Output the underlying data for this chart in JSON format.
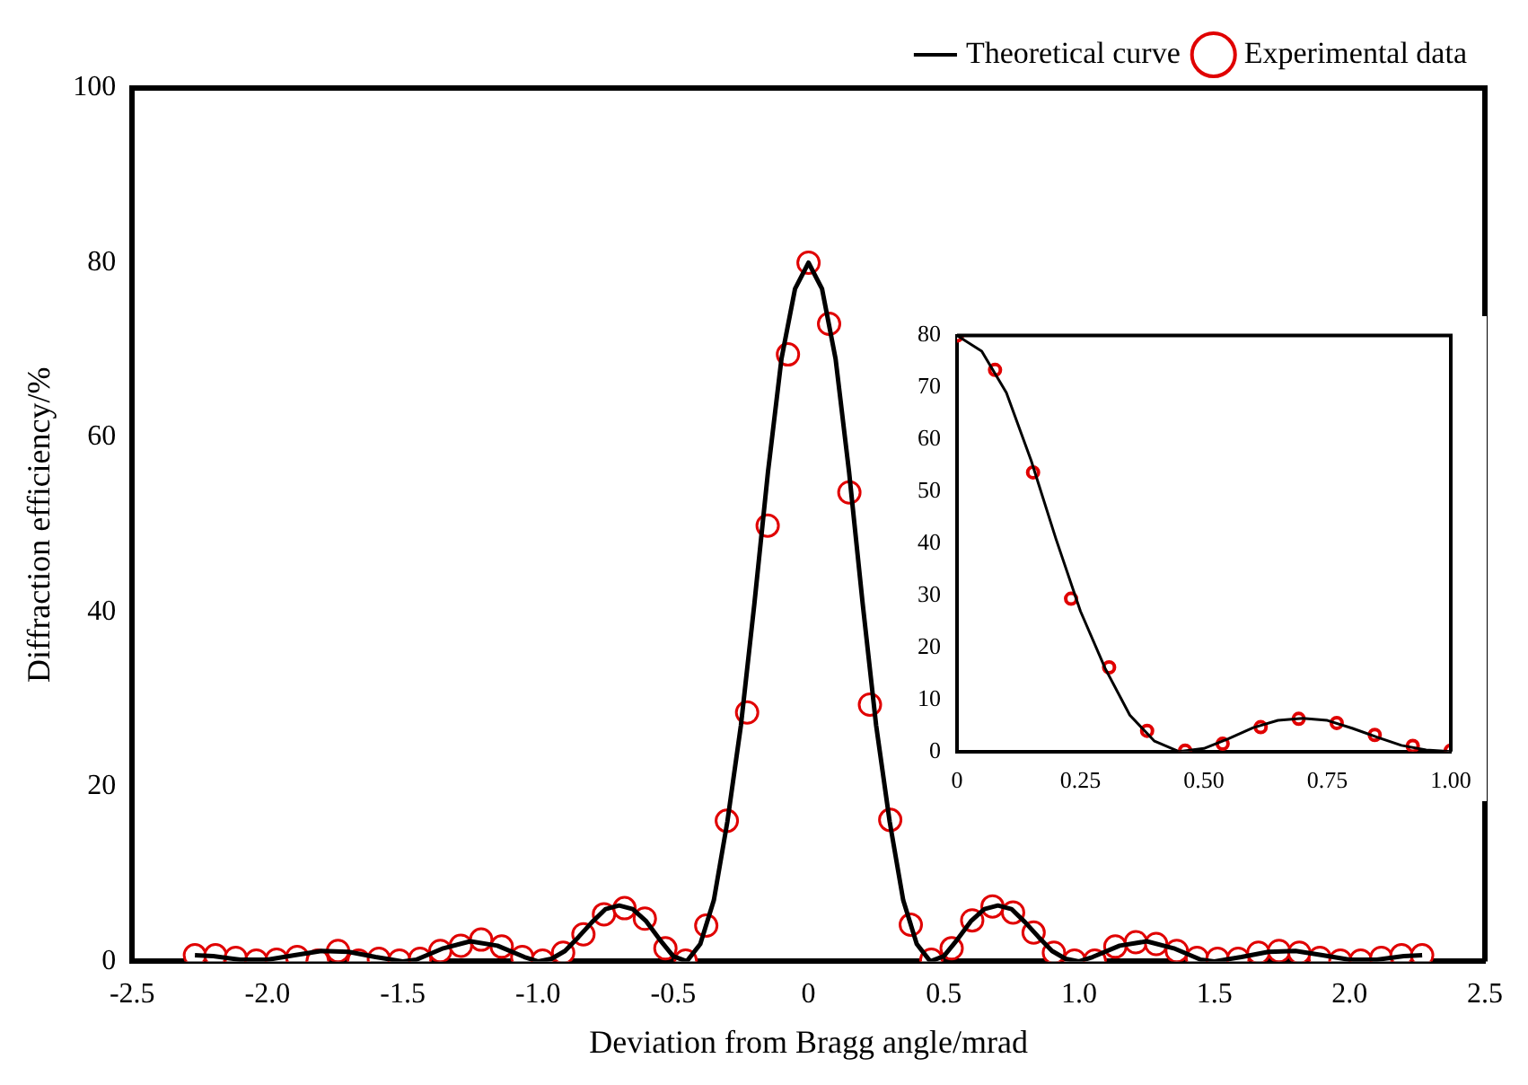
{
  "chart_data": [
    {
      "type": "scatter",
      "xlabel": "Deviation from Bragg angle/mrad",
      "ylabel": "Diffraction efficiency/%",
      "legend": "top right",
      "grid": false,
      "xlim": [
        -2.5,
        2.5
      ],
      "xticks": [
        {
          "value": -2.5,
          "label": "-2.5"
        },
        {
          "value": -2,
          "label": "-2.0"
        },
        {
          "value": -1.5,
          "label": "-1.5"
        },
        {
          "value": -1,
          "label": "-1.0"
        },
        {
          "value": -0.5,
          "label": "-0.5"
        },
        0,
        0.5,
        {
          "value": 1,
          "label": "1.0"
        },
        1.5,
        {
          "value": 2,
          "label": "2.0"
        },
        2.5
      ],
      "ylim": [
        0,
        100
      ],
      "yticks": [
        0,
        20,
        40,
        60,
        80,
        100
      ],
      "series": [
        {
          "name": "Theoretical curve",
          "type": "line",
          "marker": "none",
          "color": "#000000",
          "x": [
            -2.268,
            -2.2,
            -2.1,
            -2.0,
            -1.9,
            -1.8,
            -1.7,
            -1.6,
            -1.5,
            -1.45,
            -1.35,
            -1.25,
            -1.15,
            -1.05,
            -1.0,
            -0.95,
            -0.9,
            -0.85,
            -0.8,
            -0.75,
            -0.7,
            -0.65,
            -0.6,
            -0.55,
            -0.5,
            -0.45,
            -0.4,
            -0.35,
            -0.3,
            -0.25,
            -0.2,
            -0.15,
            -0.1,
            -0.05,
            0,
            0.05,
            0.1,
            0.15,
            0.2,
            0.25,
            0.3,
            0.35,
            0.4,
            0.45,
            0.5,
            0.55,
            0.6,
            0.65,
            0.7,
            0.75,
            0.8,
            0.85,
            0.9,
            0.95,
            1.0,
            1.05,
            1.15,
            1.25,
            1.35,
            1.45,
            1.5,
            1.6,
            1.7,
            1.8,
            1.9,
            2.0,
            2.1,
            2.2,
            2.268
          ],
          "values": [
            0.7,
            0.6,
            0.2,
            0.2,
            0.7,
            1.2,
            1.1,
            0.5,
            0,
            0.2,
            1.5,
            2.3,
            1.8,
            0.5,
            0,
            0.3,
            1.2,
            2.8,
            4.5,
            6,
            6.4,
            6,
            4.6,
            2.5,
            0.6,
            0,
            2,
            7,
            16,
            27,
            41,
            56,
            69,
            77,
            80,
            77,
            69,
            56,
            41,
            27,
            16,
            7,
            2,
            0,
            0.6,
            2.5,
            4.6,
            6,
            6.4,
            6,
            4.5,
            2.8,
            1.2,
            0.3,
            0,
            0.5,
            1.8,
            2.3,
            1.5,
            0.2,
            0,
            0.5,
            1.1,
            1.2,
            0.7,
            0.2,
            0.2,
            0.6,
            0.7
          ]
        },
        {
          "name": "Experimental data",
          "type": "scatter",
          "marker": "circle",
          "color": "#e00000",
          "x": [
            -2.268,
            -2.192,
            -2.117,
            -2.041,
            -1.966,
            -1.89,
            -1.814,
            -1.739,
            -1.663,
            -1.588,
            -1.512,
            -1.436,
            -1.361,
            -1.285,
            -1.21,
            -1.134,
            -1.058,
            -0.983,
            -0.907,
            -0.832,
            -0.756,
            -0.68,
            -0.605,
            -0.529,
            -0.454,
            -0.378,
            -0.302,
            -0.227,
            -0.151,
            -0.076,
            0,
            0.076,
            0.151,
            0.227,
            0.302,
            0.378,
            0.454,
            0.529,
            0.605,
            0.68,
            0.756,
            0.832,
            0.907,
            0.983,
            1.058,
            1.134,
            1.21,
            1.285,
            1.361,
            1.436,
            1.512,
            1.588,
            1.663,
            1.739,
            1.814,
            1.89,
            1.966,
            2.041,
            2.117,
            2.192,
            2.268
          ],
          "values": [
            0.7,
            0.7,
            0.4,
            0.1,
            0.2,
            0.5,
            0.1,
            1.2,
            0.1,
            0.3,
            0.1,
            0.3,
            1.2,
            1.8,
            2.5,
            1.7,
            0.5,
            0.1,
            1.0,
            3.1,
            5.4,
            6.1,
            4.9,
            1.5,
            0.1,
            4.1,
            16.1,
            28.5,
            49.9,
            69.5,
            80,
            73,
            53.7,
            29.4,
            16.2,
            4.2,
            0.2,
            1.5,
            4.7,
            6.3,
            5.6,
            3.3,
            1.0,
            0.1,
            0.1,
            1.7,
            2.2,
            2.0,
            1.2,
            0.4,
            0.3,
            0.3,
            1.0,
            1.2,
            1.0,
            0.4,
            0.1,
            0.1,
            0.4,
            0.7,
            0.7
          ]
        }
      ]
    },
    {
      "type": "scatter",
      "grid": false,
      "xlim": [
        0,
        1
      ],
      "xticks": [
        0,
        0.25,
        {
          "value": 0.5,
          "label": "0.50"
        },
        0.75,
        {
          "value": 1,
          "label": "1.00"
        }
      ],
      "ylim": [
        0,
        80
      ],
      "yticks": [
        0,
        10,
        20,
        30,
        40,
        50,
        60,
        70,
        80
      ],
      "series": [
        {
          "type": "line",
          "marker": "none",
          "color": "#000000",
          "x": [
            0,
            0.05,
            0.1,
            0.15,
            0.2,
            0.25,
            0.3,
            0.35,
            0.4,
            0.45,
            0.5,
            0.55,
            0.6,
            0.65,
            0.7,
            0.75,
            0.8,
            0.85,
            0.9,
            0.95,
            1.0
          ],
          "values": [
            80,
            77,
            69,
            56,
            41,
            27,
            16,
            7,
            2,
            0,
            0.6,
            2.5,
            4.6,
            6,
            6.4,
            6,
            4.5,
            2.8,
            1.2,
            0.3,
            0
          ]
        },
        {
          "type": "scatter",
          "marker": "circle",
          "color": "#e00000",
          "x": [
            0,
            0.077,
            0.154,
            0.231,
            0.308,
            0.385,
            0.462,
            0.538,
            0.615,
            0.692,
            0.769,
            0.846,
            0.923,
            1.0
          ],
          "values": [
            80,
            73.4,
            53.7,
            29.4,
            16.2,
            4.0,
            0.2,
            1.5,
            4.7,
            6.3,
            5.5,
            3.2,
            1.1,
            0.2
          ]
        }
      ]
    }
  ]
}
